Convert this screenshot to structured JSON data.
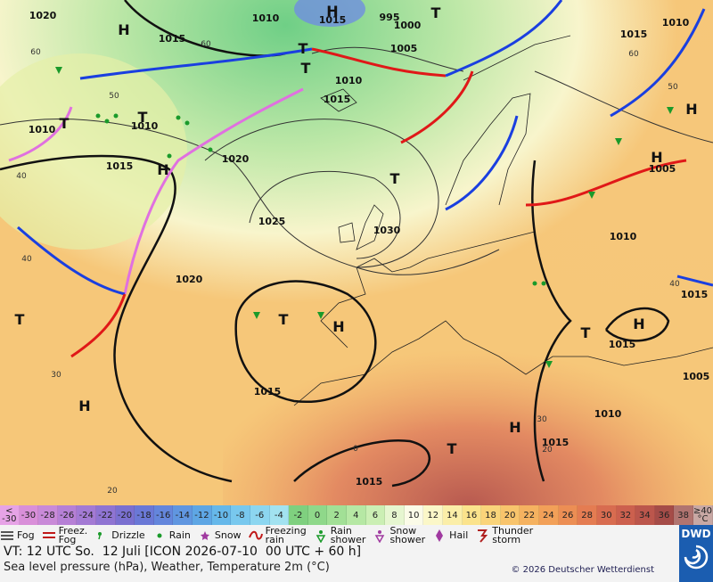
{
  "map": {
    "isobar_labels": [
      "1020",
      "1010",
      "1015",
      "995",
      "1000",
      "1015",
      "1005",
      "1015",
      "1010",
      "1010",
      "1015",
      "1010",
      "1010",
      "1015",
      "1020",
      "1005",
      "1025",
      "1030",
      "1010",
      "1020",
      "1015",
      "1015",
      "1005",
      "1015",
      "1010",
      "1015",
      "1015"
    ],
    "centers": [
      "H",
      "H",
      "T",
      "T",
      "T",
      "T",
      "T",
      "H",
      "T",
      "H",
      "H",
      "T",
      "T",
      "H",
      "T",
      "H",
      "H",
      "T",
      "H"
    ],
    "grid_labels": [
      "60",
      "50",
      "40",
      "40",
      "30",
      "20",
      "60",
      "0",
      "20",
      "60",
      "50",
      "40",
      "30"
    ]
  },
  "temperature_scale": {
    "low": [
      "<",
      "-30"
    ],
    "steps": [
      -30,
      -28,
      -26,
      -24,
      -22,
      -20,
      -18,
      -16,
      -14,
      -12,
      -10,
      -8,
      -6,
      -4,
      -2,
      0,
      2,
      4,
      6,
      8,
      10,
      12,
      14,
      16,
      18,
      20,
      22,
      24,
      26,
      28,
      30,
      32,
      34,
      36,
      38
    ],
    "high": [
      "≥40",
      "°C"
    ],
    "colors": [
      "#e6a3e6",
      "#d98fd9",
      "#c98ad8",
      "#b680d6",
      "#a37ad4",
      "#8f74d2",
      "#7a70d0",
      "#6a78d6",
      "#6486dc",
      "#6096e0",
      "#5ea6e4",
      "#66b8ea",
      "#78c8ee",
      "#8cd6f0",
      "#a2e2f0",
      "#7fd07f",
      "#8fd88a",
      "#a2e096",
      "#b6e8a4",
      "#cbefb4",
      "#e6f6d0",
      "#fbfbe8",
      "#fbf7c8",
      "#fbeea8",
      "#fbe38c",
      "#fad47a",
      "#f8c46c",
      "#f5b260",
      "#f2a058",
      "#ec8e54",
      "#e47c52",
      "#d86c50",
      "#cc604e",
      "#bb564c",
      "#a54c48",
      "#b07470",
      "#c8a8a4"
    ]
  },
  "legend": {
    "items": [
      [
        "Fog"
      ],
      [
        "Freez.",
        "Fog"
      ],
      [
        "Drizzle"
      ],
      [
        "Rain"
      ],
      [
        "Snow"
      ],
      [
        "Freezing",
        "rain"
      ],
      [
        "Rain",
        "shower"
      ],
      [
        "Snow",
        "shower"
      ],
      [
        "Hail"
      ],
      [
        "Thunder",
        "storm"
      ]
    ]
  },
  "footer": {
    "valid_time": "VT: 12 UTC So.  12 Juli [ICON 2026-07-10  00 UTC + 60 h]",
    "subtitle": "Sea level pressure (hPa), Weather, Temperature 2m (°C)",
    "copyright": "© 2026 Deutscher Wetterdienst",
    "logo": "DWD"
  }
}
